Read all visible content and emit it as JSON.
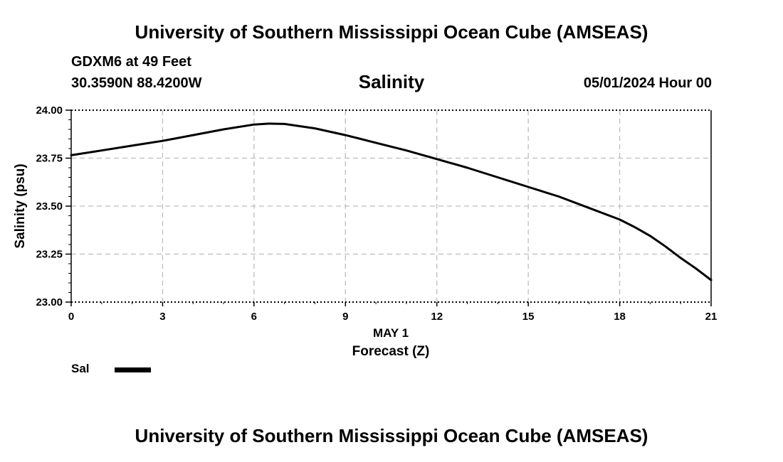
{
  "header": {
    "title": "University of Southern Mississippi Ocean Cube (AMSEAS)",
    "station": "GDXM6 at 49 Feet",
    "coords": "30.3590N  88.4200W",
    "chart_title": "Salinity",
    "datetime": "05/01/2024 Hour 00"
  },
  "footer": {
    "title": "University of Southern Mississippi Ocean Cube (AMSEAS)"
  },
  "legend": {
    "label": "Sal"
  },
  "chart_data": {
    "type": "line",
    "title": "Salinity",
    "xlabel": "Forecast (Z)",
    "xlabel_date": "MAY 1",
    "ylabel": "Salinity (psu)",
    "xlim": [
      0,
      21
    ],
    "ylim": [
      23.0,
      24.0
    ],
    "x_ticks": [
      0,
      3,
      6,
      9,
      12,
      15,
      18,
      21
    ],
    "y_ticks": [
      "23.00",
      "23.25",
      "23.50",
      "23.75",
      "24.00"
    ],
    "grid": true,
    "series": [
      {
        "name": "Sal",
        "color": "#000000",
        "x": [
          0,
          1,
          2,
          3,
          4,
          5,
          6,
          6.5,
          7,
          8,
          9,
          10,
          11,
          12,
          13,
          14,
          15,
          16,
          17,
          18,
          18.5,
          19,
          19.5,
          20,
          20.5,
          21
        ],
        "values": [
          23.765,
          23.79,
          23.815,
          23.84,
          23.87,
          23.9,
          23.925,
          23.93,
          23.928,
          23.905,
          23.87,
          23.83,
          23.79,
          23.745,
          23.7,
          23.65,
          23.6,
          23.55,
          23.49,
          23.43,
          23.39,
          23.345,
          23.29,
          23.23,
          23.175,
          23.115
        ]
      }
    ]
  }
}
